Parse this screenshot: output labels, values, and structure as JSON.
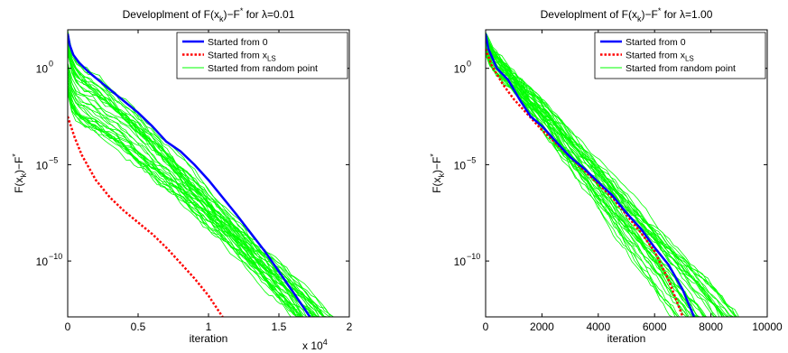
{
  "chart_data": [
    {
      "type": "line",
      "title": "Developlment of F(x_k)−F^* for λ=0.01",
      "title_parts": {
        "pre": "Developlment of F(x",
        "sub": "k",
        "mid": ")−F",
        "sup": "*",
        "post": " for λ=0.01"
      },
      "xlabel": "iteration",
      "ylabel": "F(x_k)−F^*",
      "ylabel_parts": {
        "pre": "F(x",
        "sub": "k",
        "mid": ")−F",
        "sup": "*"
      },
      "x_scale_label": "x 10^4",
      "x_scale_parts": {
        "base": "x 10",
        "exp": "4"
      },
      "xlim": [
        0,
        20000
      ],
      "ylim_log10": [
        -12.9,
        2
      ],
      "y_scale": "log",
      "x_ticks": [
        0,
        5000,
        10000,
        15000,
        20000
      ],
      "x_tick_labels": [
        "0",
        "0.5",
        "1",
        "1.5",
        "2"
      ],
      "y_ticks_log10": [
        0,
        -5,
        -10
      ],
      "y_tick_labels": [
        {
          "base": "10",
          "exp": "0"
        },
        {
          "base": "10",
          "exp": "−5"
        },
        {
          "base": "10",
          "exp": "−10"
        }
      ],
      "legend_position": "top-right",
      "series": [
        {
          "name": "Started from random point",
          "color": "#00ff00",
          "style": "solid",
          "kind": "bundle",
          "start_log10_range": [
            -1.3,
            2
          ],
          "end_x_range": [
            16200,
            19000
          ],
          "count": 40
        },
        {
          "name": "Started from 0",
          "color": "#0000ff",
          "style": "solid",
          "x": [
            0,
            150,
            400,
            800,
            1500,
            2500,
            4000,
            5000,
            6000,
            7000,
            8000,
            9000,
            10000,
            12000,
            14000,
            16000,
            17200
          ],
          "y_log10": [
            1.8,
            1.2,
            0.7,
            0.3,
            -0.2,
            -0.8,
            -1.7,
            -2.3,
            -3.0,
            -3.8,
            -4.3,
            -5.0,
            -5.8,
            -7.6,
            -9.5,
            -11.6,
            -12.9
          ]
        },
        {
          "name": "Started from x_LS",
          "name_parts": {
            "pre": "Started from x",
            "sub": "LS"
          },
          "color": "#ff0000",
          "style": "dotted",
          "x": [
            0,
            500,
            1000,
            2000,
            3000,
            4000,
            5000,
            6000,
            7000,
            8000,
            9000,
            10000,
            11000
          ],
          "y_log10": [
            -2.5,
            -3.6,
            -4.5,
            -5.8,
            -6.7,
            -7.4,
            -8.0,
            -8.6,
            -9.3,
            -10.1,
            -10.9,
            -11.8,
            -12.9
          ]
        }
      ]
    },
    {
      "type": "line",
      "title": "Developlment of F(x_k)−F^* for λ=1.00",
      "title_parts": {
        "pre": "Developlment of F(x",
        "sub": "k",
        "mid": ")−F",
        "sup": "*",
        "post": " for λ=1.00"
      },
      "xlabel": "iteration",
      "ylabel": "F(x_k)−F^*",
      "ylabel_parts": {
        "pre": "F(x",
        "sub": "k",
        "mid": ")−F",
        "sup": "*"
      },
      "xlim": [
        0,
        10000
      ],
      "ylim_log10": [
        -12.9,
        2
      ],
      "y_scale": "log",
      "x_ticks": [
        0,
        2000,
        4000,
        6000,
        8000,
        10000
      ],
      "x_tick_labels": [
        "0",
        "2000",
        "4000",
        "6000",
        "8000",
        "10000"
      ],
      "y_ticks_log10": [
        0,
        -5,
        -10
      ],
      "y_tick_labels": [
        {
          "base": "10",
          "exp": "0"
        },
        {
          "base": "10",
          "exp": "−5"
        },
        {
          "base": "10",
          "exp": "−10"
        }
      ],
      "legend_position": "top-right",
      "series": [
        {
          "name": "Started from random point",
          "color": "#00ff00",
          "style": "solid",
          "kind": "bundle",
          "start_log10_range": [
            0.6,
            1.9
          ],
          "end_x_range": [
            6500,
            9000
          ],
          "count": 40
        },
        {
          "name": "Started from 0",
          "color": "#0000ff",
          "style": "solid",
          "x": [
            0,
            100,
            400,
            800,
            1200,
            1600,
            2000,
            2500,
            3000,
            3500,
            4000,
            4500,
            5000,
            5500,
            6000,
            6500,
            7000,
            7400
          ],
          "y_log10": [
            1.8,
            1.0,
            0.0,
            -0.6,
            -1.6,
            -2.5,
            -3.0,
            -3.8,
            -4.6,
            -5.2,
            -5.9,
            -6.6,
            -7.5,
            -8.3,
            -9.3,
            -10.2,
            -11.5,
            -12.9
          ]
        },
        {
          "name": "Started from x_LS",
          "name_parts": {
            "pre": "Started from x",
            "sub": "LS"
          },
          "color": "#ff0000",
          "style": "dotted",
          "x": [
            0,
            200,
            600,
            1000,
            1500,
            2000,
            2500,
            3000,
            3500,
            4000,
            4500,
            5000,
            5500,
            6000,
            6500,
            7000
          ],
          "y_log10": [
            1.0,
            0.2,
            -0.8,
            -1.6,
            -2.4,
            -3.2,
            -3.9,
            -4.6,
            -5.3,
            -6.0,
            -6.7,
            -7.6,
            -8.5,
            -9.5,
            -11.0,
            -12.9
          ]
        }
      ]
    }
  ]
}
